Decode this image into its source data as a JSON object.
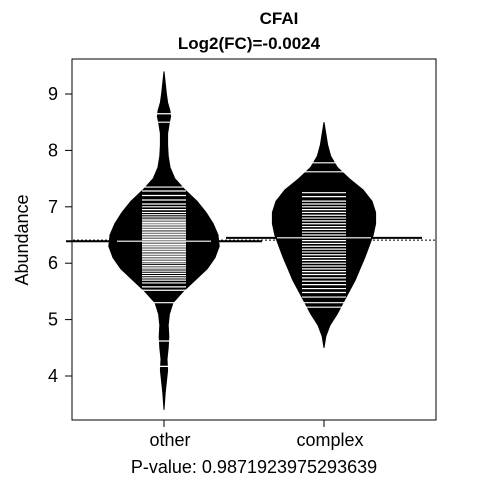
{
  "chart_data": {
    "type": "beanplot",
    "title": "CFAI",
    "subtitle": "Log2(FC)=-0.0024",
    "xlabel": "P-value: 0.9871923975293639",
    "ylabel": "Abundance",
    "ylim": [
      3.2,
      9.6
    ],
    "yticks": [
      "4",
      "5",
      "6",
      "7",
      "8",
      "9"
    ],
    "overall_mean": 6.41,
    "categories": [
      "other",
      "complex"
    ],
    "groups": [
      {
        "name": "other",
        "mean": 6.39,
        "density": [
          [
            3.4,
            0.0
          ],
          [
            3.7,
            0.02
          ],
          [
            3.9,
            0.04
          ],
          [
            4.1,
            0.06
          ],
          [
            4.3,
            0.05
          ],
          [
            4.5,
            0.07
          ],
          [
            4.7,
            0.08
          ],
          [
            4.9,
            0.07
          ],
          [
            5.1,
            0.09
          ],
          [
            5.3,
            0.15
          ],
          [
            5.5,
            0.32
          ],
          [
            5.7,
            0.52
          ],
          [
            5.9,
            0.72
          ],
          [
            6.1,
            0.85
          ],
          [
            6.3,
            0.92
          ],
          [
            6.5,
            0.9
          ],
          [
            6.7,
            0.82
          ],
          [
            6.9,
            0.7
          ],
          [
            7.1,
            0.55
          ],
          [
            7.3,
            0.35
          ],
          [
            7.5,
            0.18
          ],
          [
            7.7,
            0.1
          ],
          [
            7.9,
            0.07
          ],
          [
            8.1,
            0.06
          ],
          [
            8.3,
            0.06
          ],
          [
            8.5,
            0.09
          ],
          [
            8.6,
            0.11
          ],
          [
            8.7,
            0.1
          ],
          [
            8.85,
            0.06
          ],
          [
            9.0,
            0.04
          ],
          [
            9.2,
            0.02
          ],
          [
            9.4,
            0.0
          ]
        ],
        "points": [
          4.17,
          4.62,
          5.3,
          5.52,
          5.58,
          5.65,
          5.7,
          5.74,
          5.78,
          5.82,
          5.86,
          5.9,
          5.93,
          5.96,
          6.0,
          6.03,
          6.06,
          6.09,
          6.12,
          6.15,
          6.18,
          6.21,
          6.24,
          6.27,
          6.3,
          6.33,
          6.36,
          6.39,
          6.42,
          6.45,
          6.48,
          6.51,
          6.54,
          6.57,
          6.6,
          6.63,
          6.66,
          6.69,
          6.72,
          6.75,
          6.78,
          6.82,
          6.86,
          6.9,
          6.95,
          7.0,
          7.05,
          7.12,
          7.2,
          7.28,
          7.35,
          8.5,
          8.65
        ]
      },
      {
        "name": "complex",
        "mean": 6.45,
        "density": [
          [
            4.5,
            0.0
          ],
          [
            4.7,
            0.03
          ],
          [
            4.9,
            0.1
          ],
          [
            5.1,
            0.22
          ],
          [
            5.3,
            0.32
          ],
          [
            5.5,
            0.42
          ],
          [
            5.7,
            0.52
          ],
          [
            5.9,
            0.6
          ],
          [
            6.1,
            0.68
          ],
          [
            6.3,
            0.75
          ],
          [
            6.5,
            0.82
          ],
          [
            6.7,
            0.86
          ],
          [
            6.9,
            0.86
          ],
          [
            7.1,
            0.8
          ],
          [
            7.3,
            0.65
          ],
          [
            7.5,
            0.42
          ],
          [
            7.7,
            0.22
          ],
          [
            7.9,
            0.11
          ],
          [
            8.1,
            0.06
          ],
          [
            8.3,
            0.03
          ],
          [
            8.5,
            0.0
          ]
        ],
        "points": [
          5.22,
          5.3,
          5.4,
          5.48,
          5.55,
          5.62,
          5.68,
          5.74,
          5.8,
          5.85,
          5.9,
          5.95,
          6.0,
          6.05,
          6.1,
          6.15,
          6.2,
          6.25,
          6.3,
          6.35,
          6.4,
          6.45,
          6.5,
          6.55,
          6.6,
          6.65,
          6.7,
          6.75,
          6.8,
          6.85,
          6.9,
          6.95,
          7.0,
          7.05,
          7.1,
          7.18,
          7.25,
          7.62,
          7.78
        ]
      }
    ]
  }
}
